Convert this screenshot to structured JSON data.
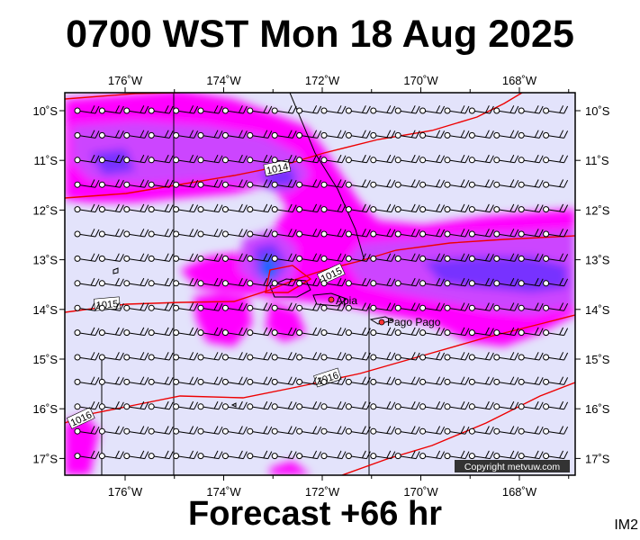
{
  "title": "0700 WST Mon 18 Aug 2025",
  "footer": "Forecast +66 hr",
  "chart_code": "IM2",
  "copyright": "Copyright metvuw.com",
  "colors": {
    "background": "#e3e3fb",
    "precip_light": "#ff00ff",
    "precip_mid": "#cc44ff",
    "precip_heavy": "#7733ff",
    "precip_max": "#1166ff",
    "isobar": "#ee0000",
    "wind": "#000000"
  },
  "lon_labels": [
    "176˚W",
    "174˚W",
    "172˚W",
    "170˚W",
    "168˚W"
  ],
  "lat_labels": [
    "10˚S",
    "11˚S",
    "12˚S",
    "13˚S",
    "14˚S",
    "15˚S",
    "16˚S",
    "17˚S"
  ],
  "places": [
    {
      "name": "Apia"
    },
    {
      "name": "Pago Pago"
    }
  ],
  "isobars": [
    {
      "label": "1014"
    },
    {
      "label": "1015"
    },
    {
      "label": "1015"
    },
    {
      "label": "1016"
    },
    {
      "label": "1016"
    }
  ]
}
